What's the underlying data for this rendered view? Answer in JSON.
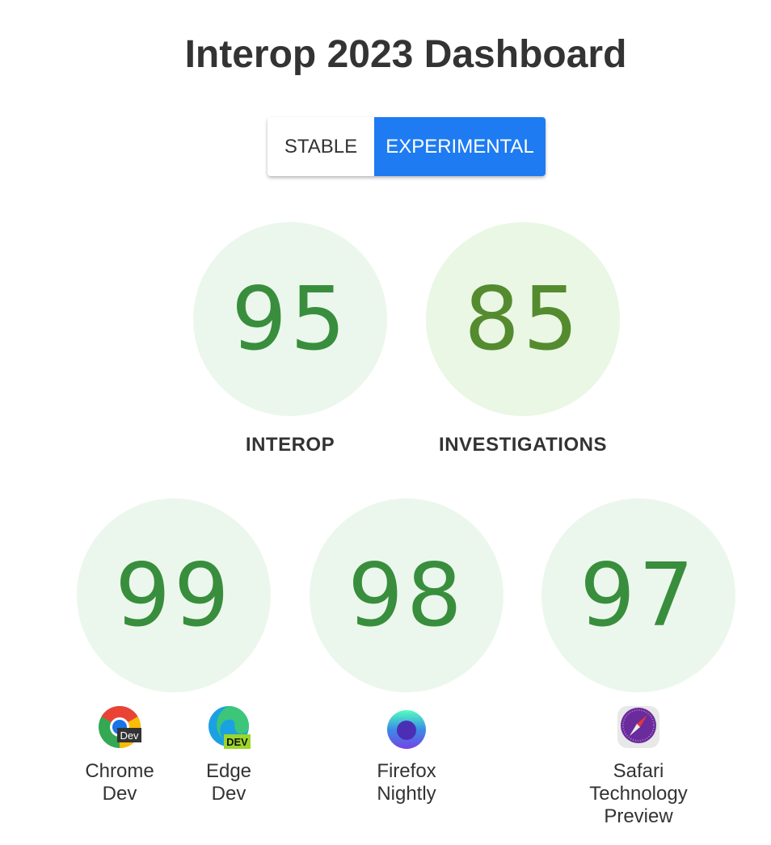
{
  "title": "Interop 2023 Dashboard",
  "toggle": {
    "options": [
      "STABLE",
      "EXPERIMENTAL"
    ],
    "selected": "EXPERIMENTAL",
    "accent": "#1e7bf2"
  },
  "summary": [
    {
      "score": "95",
      "label": "INTEROP",
      "bg": "#ebf7ec",
      "color": "#388e3c"
    },
    {
      "score": "85",
      "label": "INVESTIGATIONS",
      "bg": "#e9f7e4",
      "color": "#558b2f"
    }
  ],
  "browsers": [
    {
      "score": "99",
      "bg": "#ebf7ec",
      "color": "#388e3c"
    },
    {
      "score": "98",
      "bg": "#ebf7ec",
      "color": "#388e3c"
    },
    {
      "score": "97",
      "bg": "#ebf7ec",
      "color": "#388e3c"
    }
  ],
  "browser_labels": [
    {
      "name": "Chrome Dev",
      "icon": "chrome-dev-icon",
      "lines": [
        "Chrome",
        "Dev"
      ],
      "badge": "Dev"
    },
    {
      "name": "Edge Dev",
      "icon": "edge-dev-icon",
      "lines": [
        "Edge",
        "Dev"
      ],
      "badge": "DEV"
    },
    {
      "name": "Firefox Nightly",
      "icon": "firefox-nightly-icon",
      "lines": [
        "Firefox",
        "Nightly"
      ]
    },
    {
      "name": "Safari Technology Preview",
      "icon": "safari-technology-preview-icon",
      "lines": [
        "Safari",
        "Technology",
        "Preview"
      ]
    }
  ]
}
